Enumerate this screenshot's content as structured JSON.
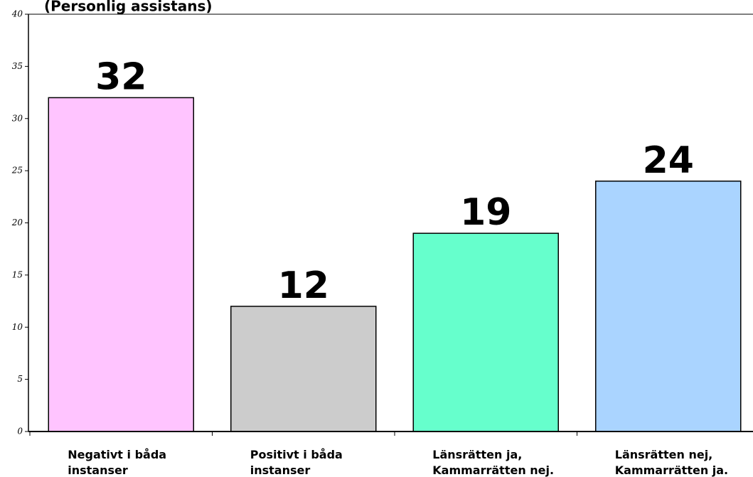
{
  "chart_data": {
    "type": "bar",
    "title": "(Personlig assistans)",
    "categories": [
      [
        "Negativt i båda",
        "instanser"
      ],
      [
        "Positivt i båda",
        "instanser"
      ],
      [
        "Länsrätten ja,",
        "Kammarrätten nej."
      ],
      [
        "Länsrätten nej,",
        "Kammarrätten ja."
      ]
    ],
    "values": [
      32,
      12,
      19,
      24
    ],
    "colors": [
      "#ffc4ff",
      "#cccccc",
      "#66ffcc",
      "#aad4ff"
    ],
    "ylim": [
      0,
      40
    ],
    "yticks": [
      0,
      5,
      10,
      15,
      20,
      25,
      30,
      35,
      40
    ],
    "grid": false
  }
}
